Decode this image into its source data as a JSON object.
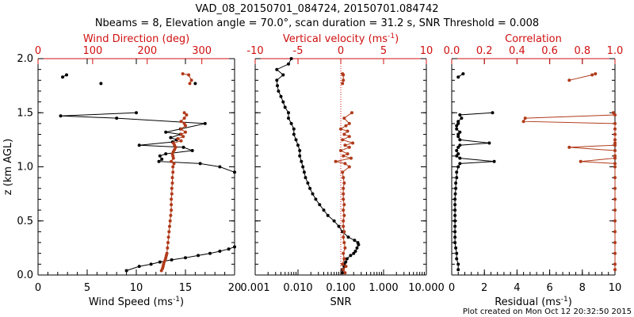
{
  "figure": {
    "title_line1": "VAD_08_20150701_084724, 20150701.084742",
    "title_line2": "Nbeams = 8, Elevation angle = 70.0°, scan duration = 31.2 s, SNR Threshold = 0.008",
    "footer": "Plot created on Mon Oct 12 20:32:50 2015"
  },
  "colors": {
    "black_series": "#000000",
    "red_series": "#b03a1a",
    "red_axis": "#d01010"
  },
  "chart_data": [
    {
      "type": "line",
      "panel": "wind",
      "ylabel": "z (km AGL)",
      "ylim": [
        0,
        2
      ],
      "yticks": [
        "0.0",
        "0.5",
        "1.0",
        "1.5",
        "2.0"
      ],
      "bottom_axis": {
        "label": "Wind Speed (ms",
        "sup": "-1",
        "suffix": ")",
        "xlim": [
          0,
          20
        ],
        "ticks": [
          "0",
          "5",
          "10",
          "15",
          "20"
        ]
      },
      "top_axis": {
        "label": "Wind Direction (deg)",
        "xlim": [
          0,
          360
        ],
        "ticks": [
          "0",
          "100",
          "200",
          "300"
        ]
      },
      "series": [
        {
          "axis": "bottom",
          "color": "black",
          "segments": [
            {
              "z": [
                0.04,
                0.08,
                0.1,
                0.12,
                0.14,
                0.16,
                0.18,
                0.2,
                0.22,
                0.24,
                0.26
              ],
              "x": [
                9.0,
                10.3,
                11.5,
                12.4,
                13.6,
                15.0,
                16.3,
                17.5,
                18.5,
                19.4,
                20.0
              ]
            },
            {
              "z": [
                0.95,
                1.0,
                1.03,
                1.05,
                1.07,
                1.1,
                1.12,
                1.15,
                1.18,
                1.2,
                1.23,
                1.25,
                1.27,
                1.3,
                1.32,
                1.35,
                1.4,
                1.45,
                1.47,
                1.5
              ],
              "x": [
                20.0,
                18.5,
                16.5,
                12.3,
                12.6,
                12.4,
                13.0,
                15.7,
                14.8,
                10.3,
                13.7,
                14.1,
                13.5,
                14.5,
                13.0,
                14.5,
                17.0,
                8.0,
                2.3,
                10.0
              ]
            },
            {
              "z": [
                1.83,
                1.85
              ],
              "x": [
                2.5,
                2.9
              ]
            },
            {
              "z": [
                1.77
              ],
              "x": [
                6.4
              ]
            },
            {
              "z": [
                1.77
              ],
              "x": [
                16.0
              ]
            }
          ]
        },
        {
          "axis": "top",
          "color": "red",
          "segments": [
            {
              "z": [
                0.04,
                0.06,
                0.08,
                0.1,
                0.12,
                0.14,
                0.16,
                0.18,
                0.2,
                0.25,
                0.3,
                0.35,
                0.4,
                0.45,
                0.5,
                0.55,
                0.6,
                0.65,
                0.7,
                0.75,
                0.8,
                0.85,
                0.9,
                0.95,
                1.0,
                1.03,
                1.05,
                1.08,
                1.1,
                1.12,
                1.14,
                1.16,
                1.18,
                1.2,
                1.22,
                1.24,
                1.26,
                1.28,
                1.3,
                1.32,
                1.35,
                1.38,
                1.4,
                1.42,
                1.45,
                1.48,
                1.5
              ],
              "x": [
                226,
                228,
                229,
                230,
                231,
                233,
                234,
                235,
                236,
                237,
                238,
                239,
                240,
                241,
                242,
                243,
                244,
                244,
                244,
                245,
                245,
                246,
                246,
                247,
                247,
                249,
                244,
                248,
                247,
                246,
                248,
                250,
                252,
                250,
                248,
                262,
                256,
                266,
                262,
                270,
                262,
                270,
                268,
                262,
                268,
                272,
                268
              ]
            },
            {
              "z": [
                1.77,
                1.8,
                1.85,
                1.86
              ],
              "x": [
                278,
                281,
                276,
                265
              ]
            }
          ]
        }
      ]
    },
    {
      "type": "line",
      "panel": "snr",
      "ylim": [
        0,
        2
      ],
      "bottom_axis": {
        "label": "SNR",
        "scale": "log",
        "xlim": [
          0.001,
          10
        ],
        "ticks": [
          "0.001",
          "0.010",
          "0.100",
          "1.000",
          "10.000"
        ]
      },
      "top_axis": {
        "label": "Vertical velocity (ms",
        "sup": "-1",
        "suffix": ")",
        "xlim": [
          -10,
          10
        ],
        "ticks": [
          "-10",
          "-5",
          "0",
          "5",
          "10"
        ]
      },
      "series": [
        {
          "axis": "bottom",
          "color": "black",
          "segments": [
            {
              "z": [
                0.02,
                0.05,
                0.08,
                0.1,
                0.12,
                0.15,
                0.18,
                0.2,
                0.22,
                0.25,
                0.28,
                0.3,
                0.32,
                0.35,
                0.4,
                0.45,
                0.5,
                0.55,
                0.6,
                0.65,
                0.7,
                0.75,
                0.8,
                0.85,
                0.9,
                0.95,
                1.0,
                1.05,
                1.1,
                1.15,
                1.2,
                1.25,
                1.3,
                1.35,
                1.4,
                1.45,
                1.5,
                1.55,
                1.6,
                1.65,
                1.7,
                1.75,
                1.8,
                1.85,
                1.9,
                1.95,
                2.0
              ],
              "x": [
                0.11,
                0.11,
                0.12,
                0.12,
                0.13,
                0.14,
                0.17,
                0.2,
                0.22,
                0.24,
                0.26,
                0.25,
                0.21,
                0.15,
                0.11,
                0.09,
                0.07,
                0.05,
                0.04,
                0.032,
                0.026,
                0.022,
                0.019,
                0.017,
                0.015,
                0.014,
                0.013,
                0.012,
                0.011,
                0.011,
                0.01,
                0.009,
                0.008,
                0.008,
                0.007,
                0.006,
                0.006,
                0.005,
                0.0045,
                0.004,
                0.0035,
                0.0033,
                0.0032,
                0.0045,
                0.0032,
                0.006,
                0.007
              ]
            }
          ]
        },
        {
          "axis": "top",
          "color": "red",
          "segments": [
            {
              "z": [
                0.02,
                0.05,
                0.08,
                0.1,
                0.15,
                0.2,
                0.25,
                0.3,
                0.35,
                0.4,
                0.45,
                0.5,
                0.55,
                0.6,
                0.65,
                0.7,
                0.75,
                0.8,
                0.85,
                0.9,
                0.95,
                1.0,
                1.03,
                1.05,
                1.08,
                1.1,
                1.12,
                1.15,
                1.18,
                1.2,
                1.22,
                1.25,
                1.28,
                1.3,
                1.33,
                1.35,
                1.38,
                1.4,
                1.45,
                1.5
              ],
              "x": [
                0.5,
                0.3,
                0.6,
                0.2,
                0.4,
                0.3,
                0.5,
                0.4,
                0.3,
                0.4,
                0.3,
                0.3,
                0.4,
                0.3,
                0.4,
                0.3,
                0.3,
                0.3,
                0.4,
                0.3,
                0.2,
                1.0,
                0.5,
                -0.6,
                1.2,
                0.3,
                0.8,
                0.0,
                1.0,
                0.5,
                1.4,
                0.2,
                1.0,
                0.4,
                0.8,
                0.0,
                0.6,
                1.0,
                0.4,
                1.3
              ]
            },
            {
              "z": [
                1.77,
                1.8,
                1.85,
                1.86
              ],
              "x": [
                0.2,
                0.3,
                0.3,
                0.2
              ]
            }
          ]
        }
      ],
      "reference_line": {
        "axis": "top",
        "x": 0,
        "style": "dotted",
        "color": "red"
      }
    },
    {
      "type": "line",
      "panel": "residual",
      "ylim": [
        0,
        2
      ],
      "bottom_axis": {
        "label": "Residual (ms",
        "sup": "-1",
        "suffix": ")",
        "xlim": [
          0,
          10
        ],
        "ticks": [
          "0",
          "2",
          "4",
          "6",
          "8",
          "10"
        ]
      },
      "top_axis": {
        "label": "Correlation",
        "xlim": [
          0,
          1
        ],
        "ticks": [
          "0.0",
          "0.2",
          "0.4",
          "0.6",
          "0.8",
          "1.0"
        ]
      },
      "series": [
        {
          "axis": "bottom",
          "color": "black",
          "segments": [
            {
              "z": [
                0.05,
                0.1,
                0.15,
                0.2,
                0.25,
                0.3,
                0.35,
                0.4,
                0.45,
                0.5,
                0.55,
                0.6,
                0.65,
                0.7,
                0.75,
                0.8,
                0.85,
                0.9,
                0.95,
                1.0,
                1.03,
                1.05,
                1.08,
                1.1,
                1.12,
                1.15,
                1.18,
                1.2,
                1.22,
                1.25,
                1.28,
                1.3,
                1.32,
                1.35,
                1.38,
                1.4,
                1.42,
                1.45,
                1.48,
                1.5
              ],
              "x": [
                0.4,
                0.4,
                0.3,
                0.3,
                0.25,
                0.2,
                0.2,
                0.2,
                0.2,
                0.2,
                0.2,
                0.2,
                0.2,
                0.2,
                0.22,
                0.25,
                0.25,
                0.3,
                0.3,
                0.4,
                0.5,
                2.6,
                0.5,
                0.3,
                0.4,
                0.3,
                0.4,
                0.5,
                2.3,
                0.5,
                0.4,
                0.4,
                0.5,
                0.3,
                0.3,
                0.4,
                0.4,
                0.6,
                0.5,
                2.5
              ]
            },
            {
              "z": [
                1.83,
                1.86
              ],
              "x": [
                0.4,
                0.7
              ]
            }
          ]
        },
        {
          "axis": "top",
          "color": "red",
          "segments": [
            {
              "z": [
                0.05,
                0.1,
                0.2,
                0.3,
                0.4,
                0.5,
                0.6,
                0.7,
                0.8,
                0.9,
                1.0,
                1.03,
                1.05,
                1.08,
                1.1,
                1.15,
                1.18,
                1.2,
                1.22,
                1.25,
                1.3,
                1.35,
                1.4,
                1.42,
                1.45,
                1.48,
                1.5
              ],
              "x": [
                1,
                1,
                1,
                1,
                1,
                1,
                1,
                1,
                1,
                1,
                1,
                1,
                0.79,
                1,
                1,
                1,
                0.72,
                1,
                1,
                1,
                1,
                1,
                1,
                0.44,
                0.45,
                1,
                0.99
              ]
            },
            {
              "z": [
                1.8,
                1.85,
                1.86
              ],
              "x": [
                0.72,
                0.86,
                0.88
              ]
            }
          ]
        }
      ]
    }
  ]
}
